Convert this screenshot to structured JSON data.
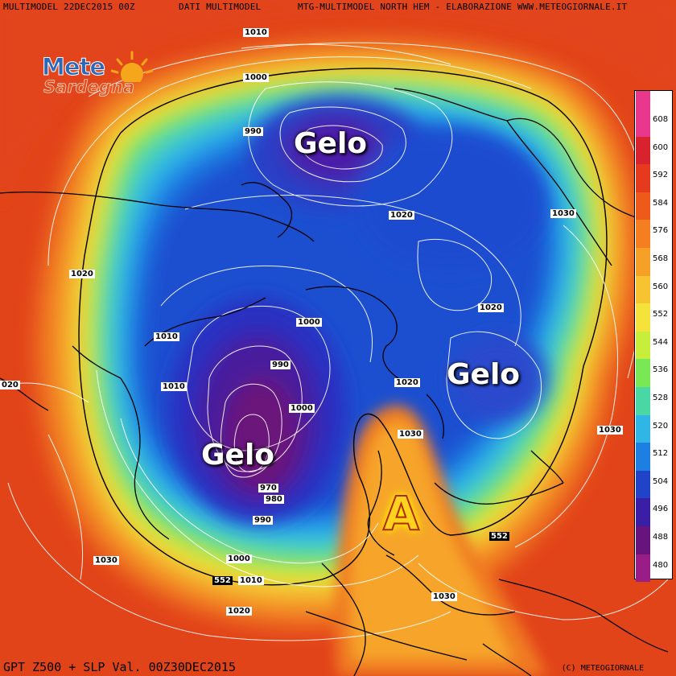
{
  "header": {
    "left": "MULTIMODEL 22DEC2015 00Z",
    "mid": "DATI MULTIMODEL",
    "right": "MTG-MULTIMODEL NORTH HEM - ELABORAZIONE WWW.METEOGIORNALE.IT"
  },
  "footer": {
    "left": "GPT Z500 + SLP Val. 00Z30DEC2015",
    "right": "(C) METEOGIORNALE"
  },
  "logo": {
    "line1": "Mete",
    "line2": "Sardegna"
  },
  "annotations": {
    "gelo_1": "Gelo",
    "gelo_2": "Gelo",
    "gelo_3": "Gelo",
    "high": "A"
  },
  "isobars": [
    "1010",
    "1000",
    "990",
    "1020",
    "1030",
    "1020",
    "1020",
    "1010",
    "1000",
    "990",
    "1010",
    "1020",
    "1000",
    "1030",
    "970",
    "980",
    "990",
    "1030",
    "1000",
    "1010",
    "1020",
    "1030",
    "1030",
    "020"
  ],
  "isohypse_552": [
    "552",
    "552"
  ],
  "legend": {
    "values": [
      "608",
      "600",
      "592",
      "584",
      "576",
      "568",
      "560",
      "552",
      "544",
      "536",
      "528",
      "520",
      "512",
      "504",
      "496",
      "488",
      "480"
    ],
    "colors": [
      "#e8378c",
      "#d8222e",
      "#e53a1e",
      "#ee5a1a",
      "#f47e20",
      "#f7a028",
      "#f8c330",
      "#f5e33c",
      "#c8ee3c",
      "#7ae854",
      "#4ad7a6",
      "#2fb6e6",
      "#1e7fe3",
      "#2143c8",
      "#3b1ea6",
      "#67147c",
      "#9a1c86"
    ],
    "top_color": "#e8378c"
  }
}
